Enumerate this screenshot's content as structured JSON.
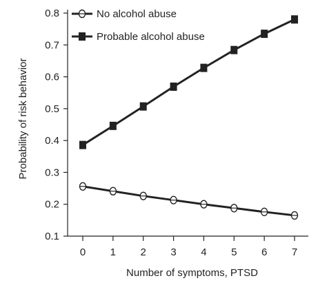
{
  "chart_data": {
    "type": "line",
    "title": "",
    "xlabel": "Number of symptoms, PTSD",
    "ylabel": "Probability of risk behavior",
    "x": [
      0,
      1,
      2,
      3,
      4,
      5,
      6,
      7
    ],
    "xlim": [
      0,
      7
    ],
    "ylim": [
      0.1,
      0.8
    ],
    "yticks": [
      "0.1",
      "0.2",
      "0.3",
      "0.4",
      "0.5",
      "0.6",
      "0.7",
      "0.8"
    ],
    "xticks": [
      "0",
      "1",
      "2",
      "3",
      "4",
      "5",
      "6",
      "7"
    ],
    "grid": false,
    "legend_position": "top-left",
    "series": [
      {
        "name": "No alcohol abuse",
        "marker": "open-circle",
        "color": "#222222",
        "values": [
          0.256,
          0.241,
          0.226,
          0.213,
          0.2,
          0.188,
          0.176,
          0.165
        ]
      },
      {
        "name": "Probable alcohol abuse",
        "marker": "filled-square",
        "color": "#222222",
        "values": [
          0.386,
          0.446,
          0.507,
          0.569,
          0.628,
          0.684,
          0.735,
          0.78
        ]
      }
    ]
  }
}
